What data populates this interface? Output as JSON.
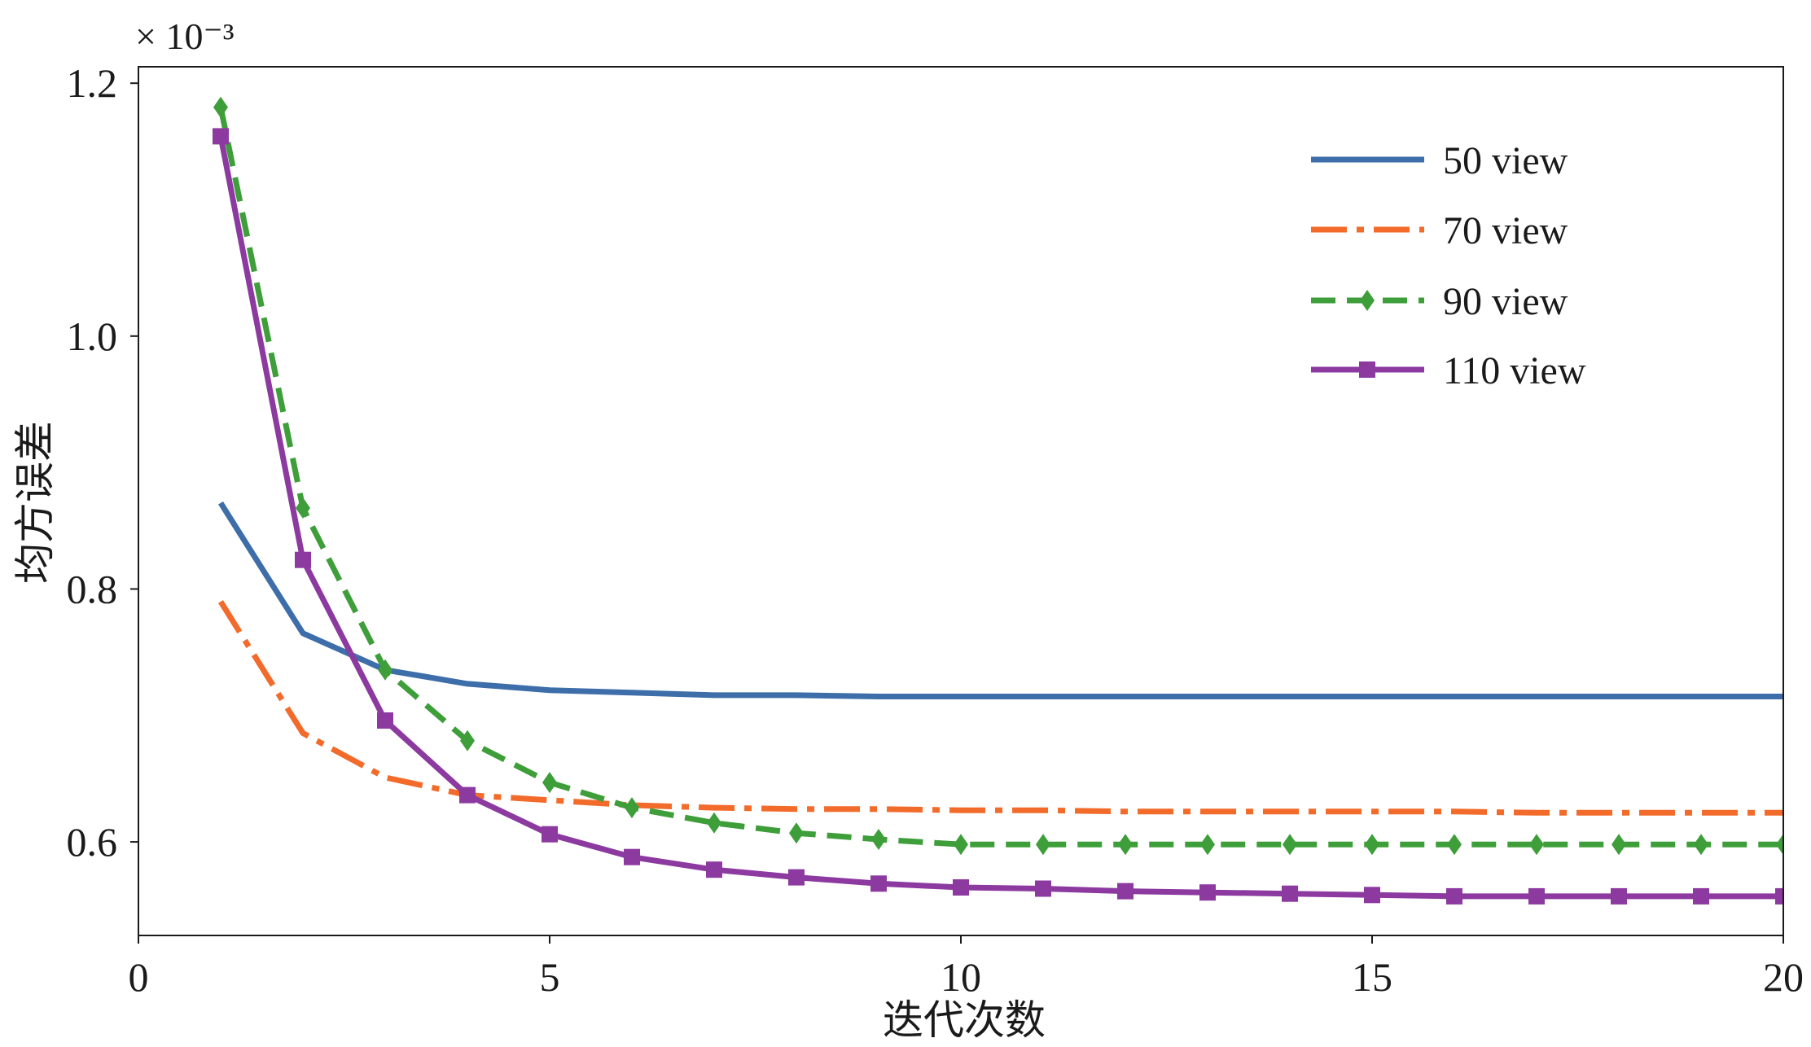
{
  "chart_data": {
    "type": "line",
    "x": [
      1,
      2,
      3,
      4,
      5,
      6,
      7,
      8,
      9,
      10,
      11,
      12,
      13,
      14,
      15,
      16,
      17,
      18,
      19,
      20
    ],
    "series": [
      {
        "name": "50 view",
        "color": "#3d6ea9",
        "values": [
          0.868,
          0.765,
          0.736,
          0.725,
          0.72,
          0.718,
          0.716,
          0.716,
          0.715,
          0.715,
          0.715,
          0.715,
          0.715,
          0.715,
          0.715,
          0.715,
          0.715,
          0.715,
          0.715,
          0.715
        ]
      },
      {
        "name": "70 view",
        "color": "#f26b2a",
        "values": [
          0.79,
          0.686,
          0.651,
          0.637,
          0.633,
          0.629,
          0.627,
          0.626,
          0.626,
          0.625,
          0.625,
          0.624,
          0.624,
          0.624,
          0.624,
          0.624,
          0.623,
          0.623,
          0.623,
          0.623
        ]
      },
      {
        "name": "90 view",
        "color": "#3e9e3a",
        "values": [
          1.181,
          0.864,
          0.736,
          0.68,
          0.647,
          0.627,
          0.615,
          0.607,
          0.602,
          0.598,
          0.598,
          0.598,
          0.598,
          0.598,
          0.598,
          0.598,
          0.598,
          0.598,
          0.598,
          0.598
        ]
      },
      {
        "name": "110 view",
        "color": "#8c3aa0",
        "values": [
          1.158,
          0.823,
          0.696,
          0.637,
          0.606,
          0.588,
          0.578,
          0.572,
          0.567,
          0.564,
          0.563,
          0.561,
          0.56,
          0.559,
          0.558,
          0.557,
          0.557,
          0.557,
          0.557,
          0.557
        ]
      }
    ],
    "xlabel": "迭代次数",
    "ylabel": "均方误差",
    "y_scale_label": "× 10⁻³",
    "xlim": [
      0,
      20
    ],
    "ylim": [
      0.526,
      1.213
    ],
    "xticks": [
      0,
      5,
      10,
      15,
      20
    ],
    "xtick_labels": [
      "0",
      "5",
      "10",
      "15",
      "20"
    ],
    "yticks": [
      0.6,
      0.8,
      1.0,
      1.2
    ],
    "ytick_labels": [
      "0.6",
      "0.8",
      "1.0",
      "1.2"
    ],
    "grid": false,
    "legend_position": "top-right"
  }
}
